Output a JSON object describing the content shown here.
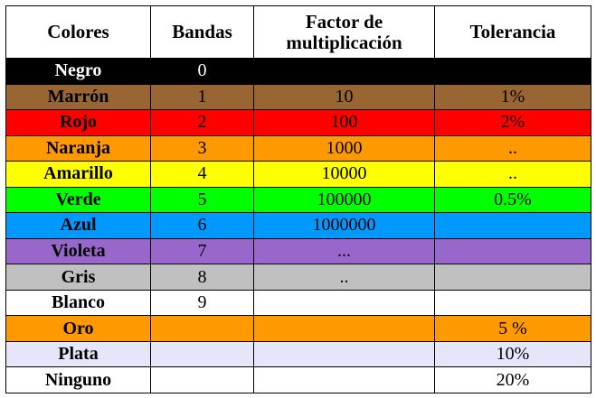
{
  "headers": {
    "colores": "Colores",
    "bandas": "Bandas",
    "factor_line1": "Factor de",
    "factor_line2": "multiplicación",
    "tolerancia": "Tolerancia"
  },
  "rows": [
    {
      "color": "Negro",
      "banda": "0",
      "factor": "",
      "tolerancia": "",
      "bg": "#000000",
      "fg": "#ffffff"
    },
    {
      "color": "Marrón",
      "banda": "1",
      "factor": "10",
      "tolerancia": "1%",
      "bg": "#996633",
      "fg": "#000000"
    },
    {
      "color": "Rojo",
      "banda": "2",
      "factor": "100",
      "tolerancia": "2%",
      "bg": "#ff0000",
      "fg": "#000000"
    },
    {
      "color": "Naranja",
      "banda": "3",
      "factor": "1000",
      "tolerancia": "..",
      "bg": "#ff9900",
      "fg": "#000000"
    },
    {
      "color": "Amarillo",
      "banda": "4",
      "factor": "10000",
      "tolerancia": "..",
      "bg": "#ffff00",
      "fg": "#000000"
    },
    {
      "color": "Verde",
      "banda": "5",
      "factor": "100000",
      "tolerancia": "0.5%",
      "bg": "#00ff00",
      "fg": "#000000"
    },
    {
      "color": "Azul",
      "banda": "6",
      "factor": "1000000",
      "tolerancia": "",
      "bg": "#0099ff",
      "fg": "#000000"
    },
    {
      "color": "Violeta",
      "banda": "7",
      "factor": "...",
      "tolerancia": "",
      "bg": "#9966cc",
      "fg": "#000000"
    },
    {
      "color": "Gris",
      "banda": "8",
      "factor": "..",
      "tolerancia": "",
      "bg": "#c0c0c0",
      "fg": "#000000"
    },
    {
      "color": "Blanco",
      "banda": "9",
      "factor": "",
      "tolerancia": "",
      "bg": "#ffffff",
      "fg": "#000000"
    },
    {
      "color": "Oro",
      "banda": "",
      "factor": "",
      "tolerancia": "5 %",
      "bg": "#ff9900",
      "fg": "#000000"
    },
    {
      "color": "Plata",
      "banda": "",
      "factor": "",
      "tolerancia": "10%",
      "bg": "#e6e6fa",
      "fg": "#000000"
    },
    {
      "color": "Ninguno",
      "banda": "",
      "factor": "",
      "tolerancia": "20%",
      "bg": "#ffffff",
      "fg": "#000000"
    }
  ]
}
